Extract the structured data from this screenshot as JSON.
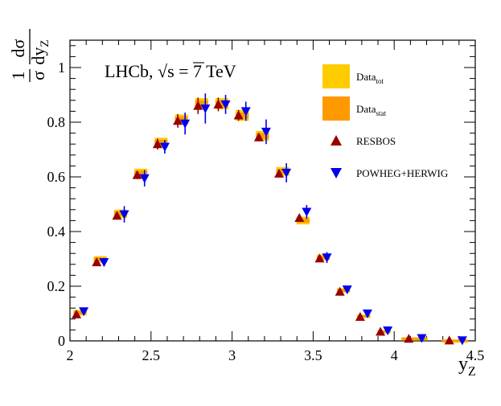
{
  "chart_data": {
    "type": "scatter",
    "annotation": {
      "experiment": "LHCb,",
      "sqrt": "√s",
      "energy": "= 7 TeV"
    },
    "ylabel": {
      "num": "1",
      "den": "σ",
      "dnum": "dσ",
      "dden": "dy",
      "sub": "Z"
    },
    "xlabel": {
      "main": "y",
      "sub": "Z"
    },
    "xlim": [
      2,
      4.5
    ],
    "ylim": [
      0,
      1.1
    ],
    "xticks": [
      {
        "value": 2,
        "label": "2"
      },
      {
        "value": 2.5,
        "label": "2.5"
      },
      {
        "value": 3,
        "label": "3"
      },
      {
        "value": 3.5,
        "label": "3.5"
      },
      {
        "value": 4,
        "label": "4"
      },
      {
        "value": 4.5,
        "label": "4.5"
      }
    ],
    "yticks": [
      {
        "value": 0,
        "label": "0"
      },
      {
        "value": 0.2,
        "label": "0.2"
      },
      {
        "value": 0.4,
        "label": "0.4"
      },
      {
        "value": 0.6,
        "label": "0.6"
      },
      {
        "value": 0.8,
        "label": "0.8"
      },
      {
        "value": 1,
        "label": "1"
      }
    ],
    "legend": {
      "position": "top-right",
      "entries": [
        {
          "key": "data_tot",
          "label": "Data",
          "sub": "tot"
        },
        {
          "key": "data_stat",
          "label": "Data",
          "sub": "stat"
        },
        {
          "key": "resbos",
          "label": "RESBOS"
        },
        {
          "key": "powheg",
          "label": "POWHEG+HERWIG"
        }
      ]
    },
    "colors": {
      "data_tot": "#ffcc00",
      "data_stat": "#ff9900",
      "resbos": "#990000",
      "powheg": "#0000ee"
    },
    "bins": [
      2.0,
      2.125,
      2.25,
      2.375,
      2.5,
      2.625,
      2.75,
      2.875,
      3.0,
      3.125,
      3.25,
      3.375,
      3.5,
      3.625,
      3.75,
      3.875,
      4.0,
      4.25,
      4.5
    ],
    "series": [
      {
        "name": "Data",
        "values": [
          0.103,
          0.298,
          0.465,
          0.612,
          0.725,
          0.81,
          0.868,
          0.868,
          0.825,
          0.75,
          0.62,
          0.44,
          0.305,
          0.185,
          0.09,
          0.035,
          0.01,
          0.003
        ],
        "err_tot": [
          0.01,
          0.012,
          0.015,
          0.018,
          0.018,
          0.018,
          0.02,
          0.02,
          0.02,
          0.018,
          0.016,
          0.014,
          0.011,
          0.008,
          0.006,
          0.004,
          0.003,
          0.002
        ],
        "err_stat": [
          0.006,
          0.007,
          0.008,
          0.01,
          0.01,
          0.01,
          0.011,
          0.011,
          0.011,
          0.01,
          0.009,
          0.007,
          0.006,
          0.005,
          0.004,
          0.003,
          0.002,
          0.0015
        ]
      },
      {
        "name": "RESBOS",
        "x": [
          2.04,
          2.165,
          2.29,
          2.415,
          2.54,
          2.665,
          2.79,
          2.915,
          3.04,
          3.165,
          3.29,
          3.415,
          3.54,
          3.665,
          3.79,
          3.915,
          4.09,
          4.34
        ],
        "values": [
          0.097,
          0.288,
          0.458,
          0.607,
          0.72,
          0.805,
          0.86,
          0.865,
          0.825,
          0.745,
          0.612,
          0.45,
          0.302,
          0.18,
          0.088,
          0.034,
          0.008,
          0.002
        ],
        "err": [
          0.005,
          0.008,
          0.012,
          0.015,
          0.02,
          0.025,
          0.03,
          0.025,
          0.02,
          0.015,
          0.012,
          0.01,
          0.006,
          0.004,
          0.003,
          0.002,
          0.001,
          0.001
        ]
      },
      {
        "name": "POWHEG+HERWIG",
        "x": [
          2.085,
          2.21,
          2.335,
          2.46,
          2.585,
          2.71,
          2.835,
          2.96,
          3.085,
          3.21,
          3.335,
          3.46,
          3.585,
          3.71,
          3.835,
          3.96,
          4.17,
          4.42
        ],
        "values": [
          0.108,
          0.288,
          0.463,
          0.595,
          0.71,
          0.795,
          0.85,
          0.865,
          0.84,
          0.765,
          0.615,
          0.472,
          0.305,
          0.188,
          0.1,
          0.038,
          0.01,
          0.002
        ],
        "err": [
          0.008,
          0.015,
          0.03,
          0.03,
          0.025,
          0.04,
          0.055,
          0.035,
          0.035,
          0.045,
          0.035,
          0.025,
          0.02,
          0.012,
          0.008,
          0.006,
          0.003,
          0.002
        ]
      }
    ]
  }
}
